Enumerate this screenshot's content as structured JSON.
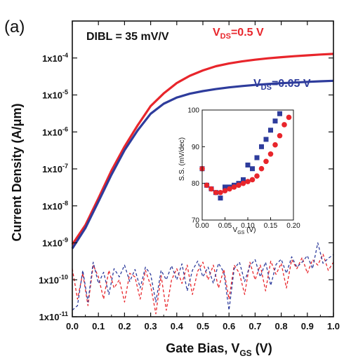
{
  "panel_label": "(a)",
  "colors": {
    "red": "#e8252b",
    "blue": "#2e3c9c",
    "axis": "#111111"
  },
  "chart_data": [
    {
      "type": "line",
      "annotation": "DIBL = 35 mV/V",
      "xlabel": "Gate Bias, V",
      "xlabel_sub": "GS",
      "xlabel_unit": "(V)",
      "ylabel": "Current Density (A/μm)",
      "xlim": [
        0.0,
        1.0
      ],
      "ylim": [
        1e-11,
        0.001
      ],
      "yscale": "log",
      "x_ticks": [
        0.0,
        0.1,
        0.2,
        0.3,
        0.4,
        0.5,
        0.6,
        0.7,
        0.8,
        0.9,
        1.0
      ],
      "x_tick_labels": [
        "0.0",
        "0.1",
        "0.2",
        "0.3",
        "0.4",
        "0.5",
        "0.6",
        "0.7",
        "0.8",
        "0.9",
        "1.0"
      ],
      "y_ticks": [
        -11,
        -10,
        -9,
        -8,
        -7,
        -6,
        -5,
        -4
      ],
      "y_tick_base": "1x10",
      "y_tick_exps": [
        "-11",
        "-10",
        "-9",
        "-8",
        "-7",
        "-6",
        "-5",
        "-4"
      ],
      "series": [
        {
          "name": "V",
          "name_sub": "DS",
          "name_value": "=0.5 V",
          "color": "#e8252b",
          "style": "solid",
          "x": [
            0.0,
            0.05,
            0.1,
            0.15,
            0.2,
            0.25,
            0.3,
            0.35,
            0.4,
            0.45,
            0.5,
            0.55,
            0.6,
            0.65,
            0.7,
            0.75,
            0.8,
            0.85,
            0.9,
            0.95,
            1.0
          ],
          "y": [
            9e-10,
            3e-09,
            1.6e-08,
            9e-08,
            4e-07,
            1.5e-06,
            5e-06,
            1.1e-05,
            2.1e-05,
            3.3e-05,
            4.6e-05,
            6e-05,
            7.1e-05,
            8.1e-05,
            9e-05,
            9.8e-05,
            0.000105,
            0.000112,
            0.000118,
            0.000124,
            0.000129
          ]
        },
        {
          "name": "V",
          "name_sub": "DS",
          "name_value": "=0.05 V",
          "color": "#2e3c9c",
          "style": "solid",
          "x": [
            0.0,
            0.05,
            0.1,
            0.15,
            0.2,
            0.25,
            0.3,
            0.35,
            0.4,
            0.45,
            0.5,
            0.55,
            0.6,
            0.65,
            0.7,
            0.75,
            0.8,
            0.85,
            0.9,
            0.95,
            1.0
          ],
          "y": [
            7e-10,
            2.5e-09,
            1.3e-08,
            7e-08,
            3.2e-07,
            1.1e-06,
            3.1e-06,
            5.8e-06,
            8.5e-06,
            1.08e-05,
            1.27e-05,
            1.44e-05,
            1.6e-05,
            1.74e-05,
            1.87e-05,
            1.98e-05,
            2.08e-05,
            2.17e-05,
            2.26e-05,
            2.34e-05,
            2.42e-05
          ]
        },
        {
          "name": "",
          "color": "#e8252b",
          "style": "dashed",
          "x": [
            0.0,
            0.02,
            0.04,
            0.06,
            0.08,
            0.1,
            0.12,
            0.14,
            0.16,
            0.18,
            0.2,
            0.22,
            0.24,
            0.26,
            0.28,
            0.3,
            0.32,
            0.34,
            0.36,
            0.38,
            0.4,
            0.42,
            0.44,
            0.46,
            0.48,
            0.5,
            0.52,
            0.54,
            0.56,
            0.58,
            0.6,
            0.62,
            0.64,
            0.66,
            0.68,
            0.7,
            0.72,
            0.74,
            0.76,
            0.78,
            0.8,
            0.82,
            0.84,
            0.86,
            0.88,
            0.9,
            0.92,
            0.94,
            0.96,
            0.98,
            1.0
          ],
          "y": [
            2e-10,
            3e-11,
            1.5e-10,
            2e-11,
            2.5e-10,
            1.2e-10,
            3e-11,
            1.8e-10,
            6e-11,
            1e-10,
            2.5e-11,
            1.5e-10,
            1.2e-10,
            3e-11,
            1.8e-10,
            7e-11,
            1.2e-11,
            1.3e-10,
            1.5e-11,
            1e-10,
            2e-10,
            8e-11,
            2.5e-10,
            4e-11,
            1.7e-10,
            3e-10,
            1e-10,
            2.5e-10,
            6e-11,
            1.9e-10,
            3e-11,
            2.5e-10,
            1.5e-10,
            4e-11,
            3e-10,
            1e-10,
            2.5e-10,
            5e-11,
            3.2e-10,
            1.4e-10,
            2.8e-10,
            6e-11,
            3.5e-10,
            2e-10,
            4e-10,
            1.5e-10,
            3.5e-10,
            2.5e-10,
            5e-10,
            1.8e-10,
            3e-10
          ]
        },
        {
          "name": "",
          "color": "#2e3c9c",
          "style": "dashed",
          "x": [
            0.0,
            0.02,
            0.04,
            0.06,
            0.08,
            0.1,
            0.12,
            0.14,
            0.16,
            0.18,
            0.2,
            0.22,
            0.24,
            0.26,
            0.28,
            0.3,
            0.32,
            0.34,
            0.36,
            0.38,
            0.4,
            0.42,
            0.44,
            0.46,
            0.48,
            0.5,
            0.52,
            0.54,
            0.56,
            0.58,
            0.6,
            0.62,
            0.64,
            0.66,
            0.68,
            0.7,
            0.72,
            0.74,
            0.76,
            0.78,
            0.8,
            0.82,
            0.84,
            0.86,
            0.88,
            0.9,
            0.92,
            0.94,
            0.96,
            0.98,
            1.0
          ],
          "y": [
            1.5e-11,
            2e-11,
            1.8e-10,
            2.5e-11,
            3e-10,
            8e-11,
            1.6e-10,
            4e-11,
            2e-10,
            1.2e-10,
            2.5e-10,
            9e-11,
            1.9e-10,
            6e-11,
            2.2e-10,
            1.4e-10,
            2.5e-11,
            1.8e-10,
            1e-10,
            2.4e-10,
            1e-10,
            2.7e-10,
            5e-11,
            1.8e-10,
            3.2e-10,
            1.2e-10,
            2.2e-10,
            8e-11,
            2.8e-10,
            1.6e-10,
            1.5e-11,
            2e-10,
            3e-10,
            9e-11,
            2.4e-10,
            3.5e-10,
            1.2e-10,
            3e-10,
            7e-11,
            2.6e-10,
            3.6e-10,
            1.5e-10,
            4.2e-10,
            2.2e-10,
            3e-10,
            4.5e-10,
            2e-10,
            1e-09,
            2.8e-10,
            3.8e-10,
            4.8e-10
          ]
        }
      ]
    },
    {
      "type": "scatter",
      "xlabel": "V",
      "xlabel_sub": "GS",
      "xlabel_unit": " (V)",
      "ylabel": "S.S. (mV/dec)",
      "xlim": [
        0.0,
        0.2
      ],
      "ylim": [
        70,
        100
      ],
      "x_ticks": [
        0.0,
        0.05,
        0.1,
        0.15,
        0.2
      ],
      "x_tick_labels": [
        "0.00",
        "0.05",
        "0.10",
        "0.15",
        "0.20"
      ],
      "y_ticks": [
        70,
        80,
        90,
        100
      ],
      "y_tick_labels": [
        "70",
        "80",
        "90",
        "100"
      ],
      "series": [
        {
          "name": "",
          "color": "#2e3c9c",
          "marker": "square",
          "x": [
            0.0,
            0.01,
            0.02,
            0.03,
            0.04,
            0.05,
            0.06,
            0.07,
            0.08,
            0.09,
            0.1,
            0.11,
            0.12,
            0.13,
            0.14,
            0.15,
            0.16,
            0.17
          ],
          "y": [
            84,
            79.5,
            78.5,
            77.5,
            76,
            79,
            79,
            79.5,
            80,
            81,
            85,
            84,
            87,
            90,
            92,
            94.5,
            97,
            99
          ]
        },
        {
          "name": "",
          "color": "#e8252b",
          "marker": "circle",
          "x": [
            0.0,
            0.01,
            0.02,
            0.03,
            0.04,
            0.05,
            0.06,
            0.07,
            0.08,
            0.09,
            0.1,
            0.11,
            0.12,
            0.13,
            0.14,
            0.15,
            0.16,
            0.17,
            0.18,
            0.19
          ],
          "y": [
            84,
            79.5,
            78.5,
            77.5,
            77.5,
            78,
            78.5,
            79,
            79.5,
            80,
            80.5,
            81,
            82,
            84,
            86,
            88,
            90.5,
            93,
            96,
            98
          ]
        }
      ]
    }
  ]
}
